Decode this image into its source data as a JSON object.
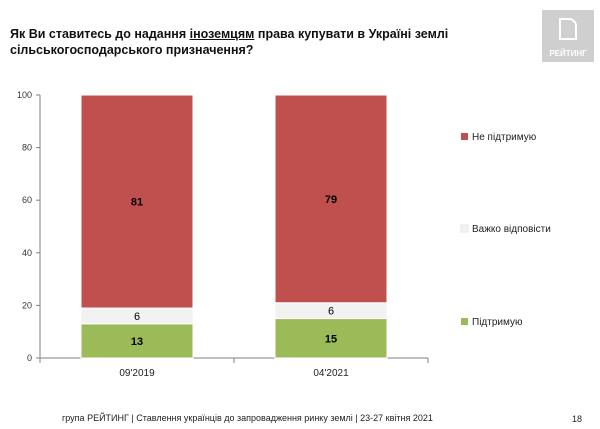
{
  "header": {
    "title_before": "Як Ви ставитесь до надання ",
    "title_underlined": "іноземцям",
    "title_after": " права купувати в Україні землі сільськогосподарського призначення?"
  },
  "logo": {
    "text": "РЕЙТИНГ",
    "icon": "rating-logo-icon"
  },
  "chart_data": {
    "type": "bar",
    "stacked": true,
    "categories": [
      "09'2019",
      "04'2021"
    ],
    "series": [
      {
        "name": "Підтримую",
        "values": [
          13,
          15
        ],
        "color": "#9bbb59"
      },
      {
        "name": "Важко відповісти",
        "values": [
          6,
          6
        ],
        "color": "#f2f2f2"
      },
      {
        "name": "Не підтримую",
        "values": [
          81,
          79
        ],
        "color": "#c0504d"
      }
    ],
    "ylim": [
      0,
      100
    ],
    "yticks": [
      "0",
      "20",
      "40",
      "60",
      "80",
      "100"
    ],
    "grid": false,
    "legend_placement": "right"
  },
  "footer": {
    "text": "група РЕЙТИНГ | Ставлення українців до запровадження ринку землі | 23-27 квітня 2021",
    "page": "18"
  }
}
